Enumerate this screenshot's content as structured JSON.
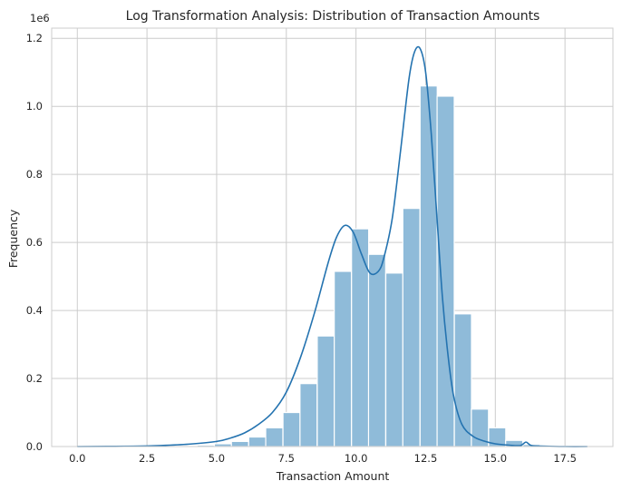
{
  "chart_data": {
    "type": "bar",
    "title": "Log Transformation Analysis: Distribution of Transaction Amounts",
    "xlabel": "Transaction Amount",
    "ylabel": "Frequency",
    "y_scale_note": "1e6",
    "xlim": [
      -0.92,
      19.22
    ],
    "ylim": [
      0,
      1.23
    ],
    "x_ticks": [
      0.0,
      2.5,
      5.0,
      7.5,
      10.0,
      12.5,
      15.0,
      17.5
    ],
    "x_tick_labels": [
      "0.0",
      "2.5",
      "5.0",
      "7.5",
      "10.0",
      "12.5",
      "15.0",
      "17.5"
    ],
    "y_ticks": [
      0.0,
      0.2,
      0.4,
      0.6,
      0.8,
      1.0,
      1.2
    ],
    "y_tick_labels": [
      "0.0",
      "0.2",
      "0.4",
      "0.6",
      "0.8",
      "1.0",
      "1.2"
    ],
    "grid": true,
    "bin_width": 0.615,
    "bins": [
      {
        "x": 0.0,
        "value": 0.0
      },
      {
        "x": 0.61,
        "value": 0.0
      },
      {
        "x": 1.23,
        "value": 0.0
      },
      {
        "x": 1.84,
        "value": 0.0
      },
      {
        "x": 2.46,
        "value": 0.0
      },
      {
        "x": 3.07,
        "value": 0.001
      },
      {
        "x": 3.69,
        "value": 0.002
      },
      {
        "x": 4.3,
        "value": 0.004
      },
      {
        "x": 4.92,
        "value": 0.008
      },
      {
        "x": 5.53,
        "value": 0.015
      },
      {
        "x": 6.15,
        "value": 0.028
      },
      {
        "x": 6.76,
        "value": 0.055
      },
      {
        "x": 7.38,
        "value": 0.1
      },
      {
        "x": 7.99,
        "value": 0.185
      },
      {
        "x": 8.61,
        "value": 0.325
      },
      {
        "x": 9.22,
        "value": 0.515
      },
      {
        "x": 9.84,
        "value": 0.64
      },
      {
        "x": 10.45,
        "value": 0.565
      },
      {
        "x": 11.07,
        "value": 0.51
      },
      {
        "x": 11.68,
        "value": 0.7
      },
      {
        "x": 12.3,
        "value": 1.06
      },
      {
        "x": 12.91,
        "value": 1.03
      },
      {
        "x": 13.53,
        "value": 0.39
      },
      {
        "x": 14.14,
        "value": 0.11
      },
      {
        "x": 14.76,
        "value": 0.055
      },
      {
        "x": 15.37,
        "value": 0.018
      },
      {
        "x": 15.99,
        "value": 0.006
      },
      {
        "x": 16.6,
        "value": 0.002
      },
      {
        "x": 17.22,
        "value": 0.001
      },
      {
        "x": 17.83,
        "value": 0.0
      }
    ],
    "kde": {
      "x": [
        0.0,
        2.0,
        3.0,
        4.0,
        5.0,
        5.5,
        6.0,
        6.5,
        7.0,
        7.5,
        8.0,
        8.5,
        9.0,
        9.3,
        9.6,
        9.9,
        10.2,
        10.5,
        10.8,
        11.0,
        11.3,
        11.6,
        11.9,
        12.1,
        12.3,
        12.5,
        12.7,
        12.9,
        13.1,
        13.3,
        13.5,
        13.8,
        14.2,
        14.6,
        15.0,
        15.5,
        15.9,
        16.1,
        16.3,
        16.8,
        17.5,
        18.3
      ],
      "y": [
        0.0,
        0.001,
        0.003,
        0.007,
        0.015,
        0.025,
        0.04,
        0.065,
        0.1,
        0.16,
        0.26,
        0.39,
        0.54,
        0.615,
        0.65,
        0.63,
        0.565,
        0.51,
        0.515,
        0.555,
        0.67,
        0.87,
        1.08,
        1.16,
        1.17,
        1.1,
        0.92,
        0.68,
        0.44,
        0.27,
        0.15,
        0.065,
        0.03,
        0.016,
        0.008,
        0.004,
        0.003,
        0.013,
        0.003,
        0.001,
        0.0,
        0.0
      ]
    },
    "colors": {
      "bar_fill": "#8fbbd9",
      "bar_edge": "#ffffff",
      "line": "#2473b0",
      "grid": "#cccccc",
      "axis": "#cccccc",
      "text": "#262626"
    }
  }
}
